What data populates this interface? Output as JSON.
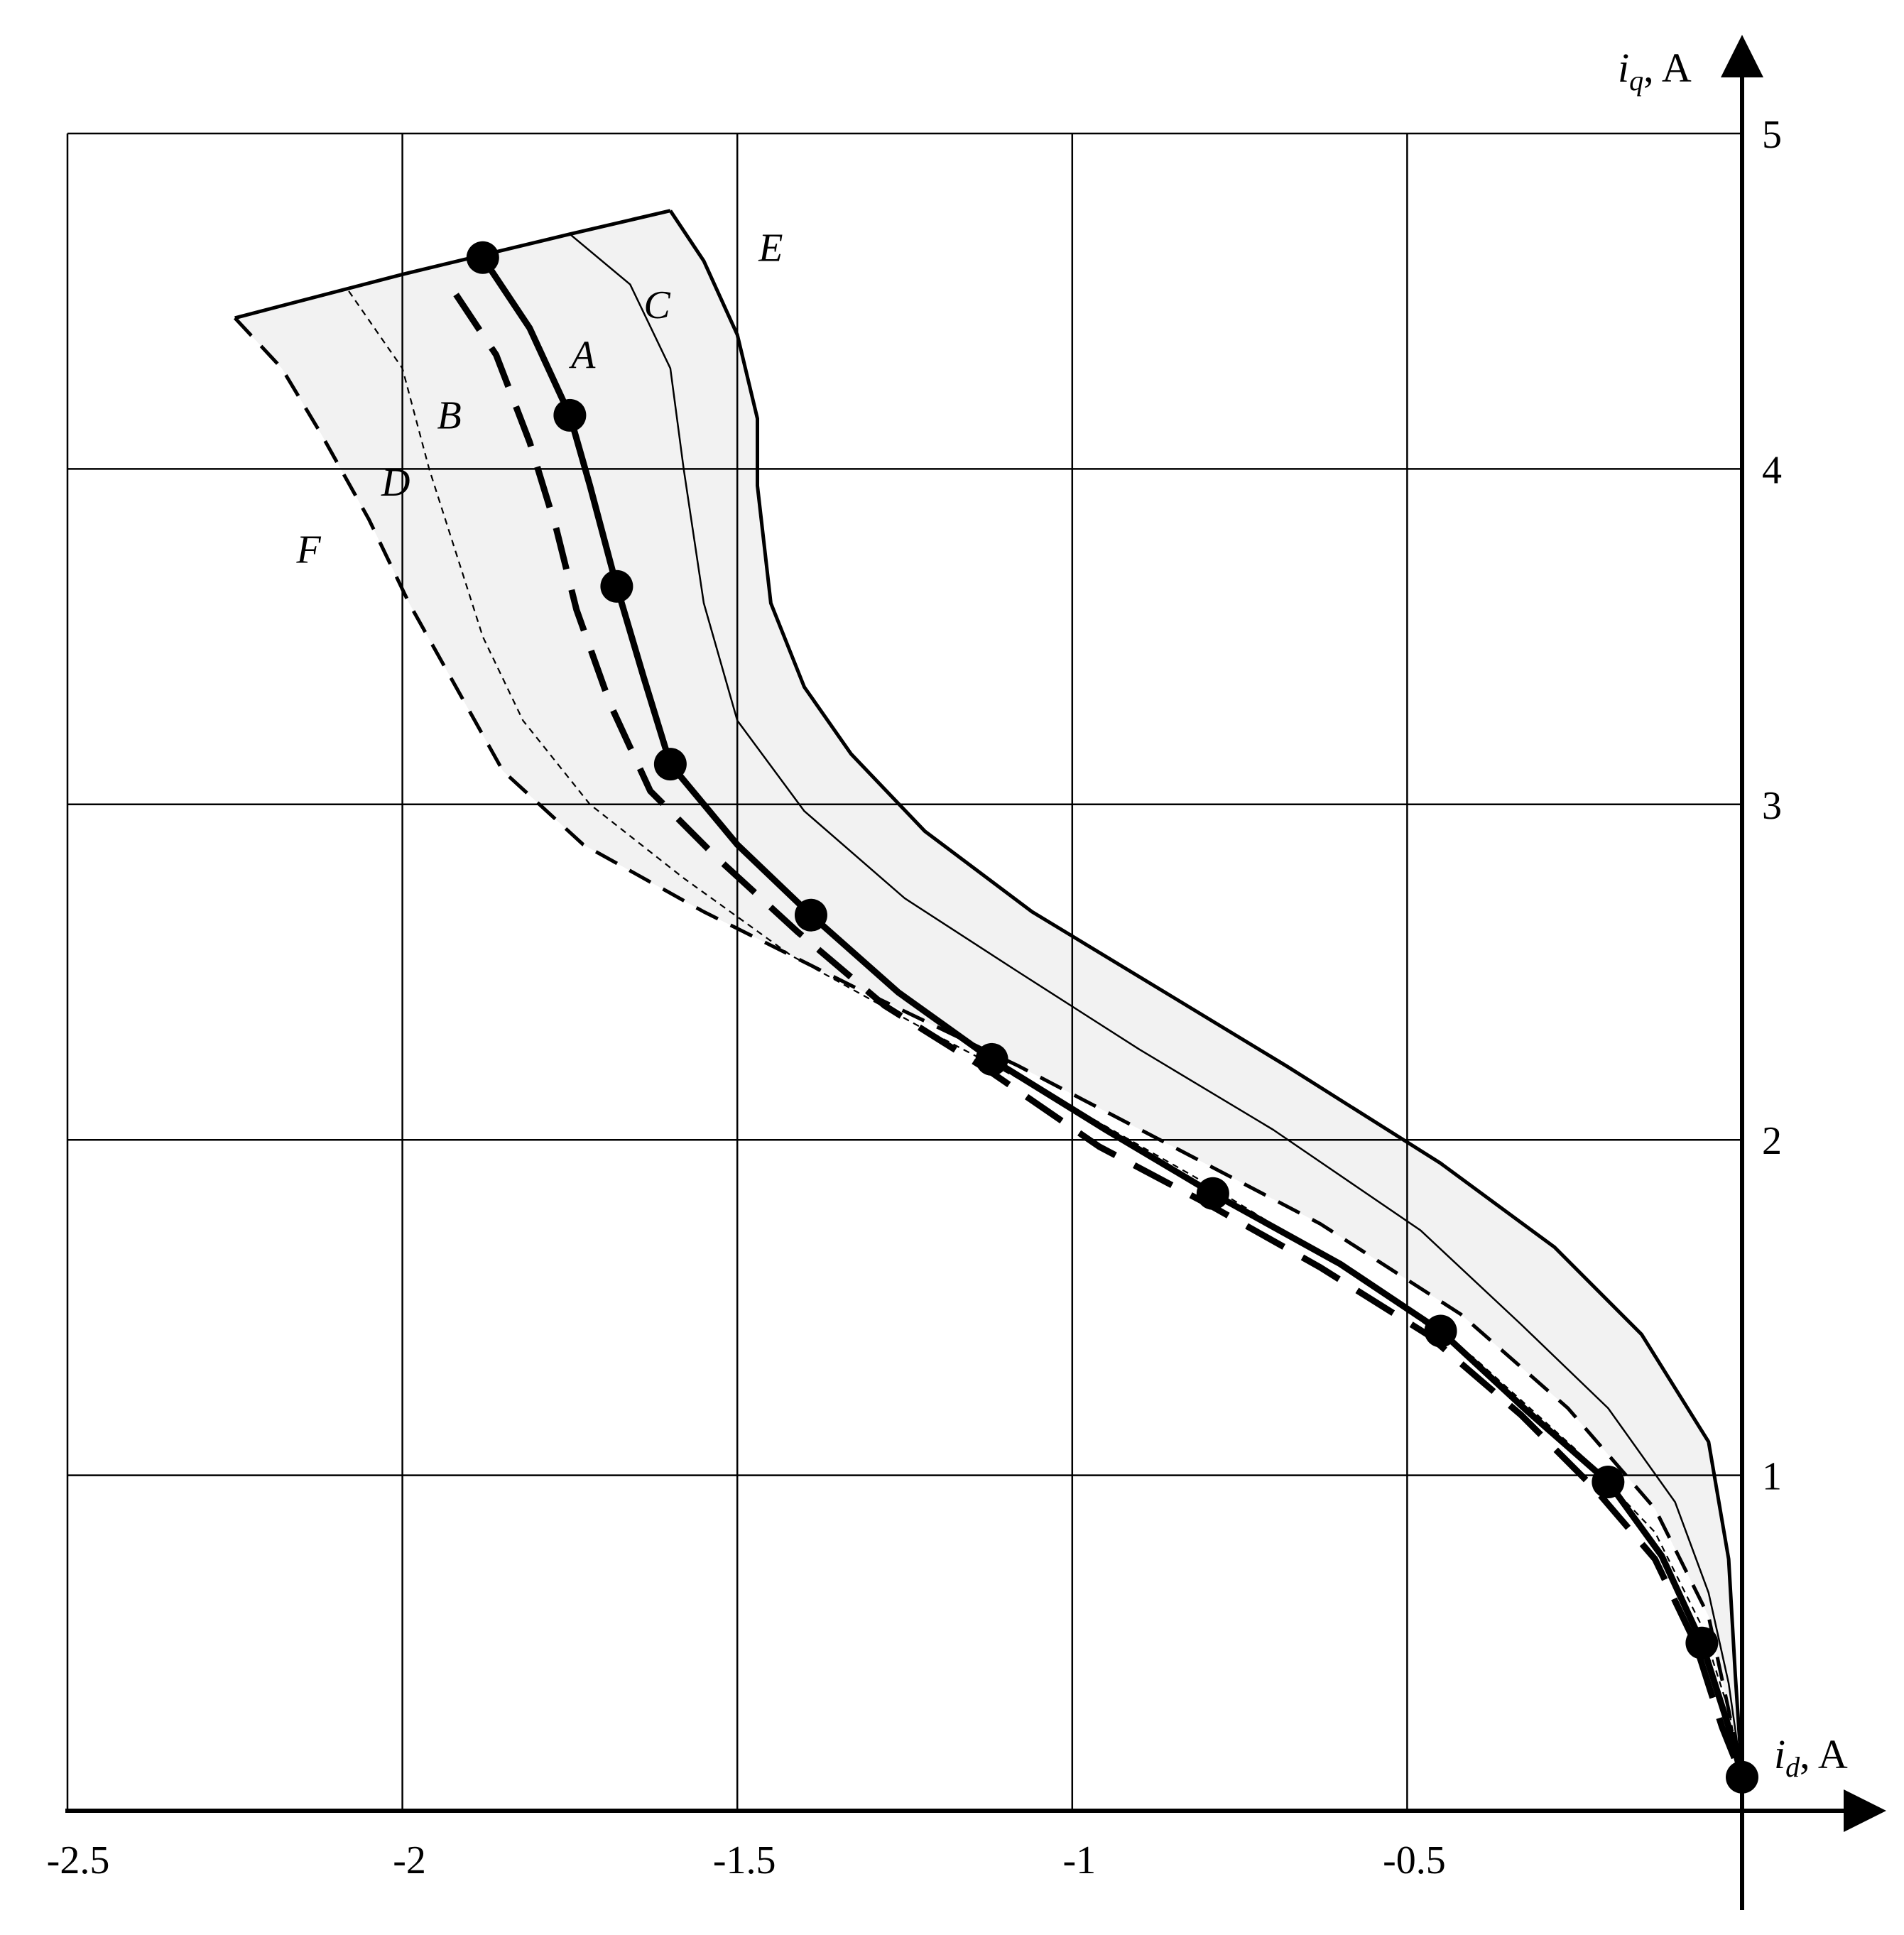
{
  "chart_data": {
    "type": "line",
    "title": "",
    "x_axis": {
      "label": "i",
      "subscript": "d",
      "unit": ", A",
      "range": [
        -2.5,
        0
      ],
      "ticks": [
        -2.5,
        -2,
        -1.5,
        -1,
        -0.5
      ],
      "tick_labels": [
        "-2.5",
        "-2",
        "-1.5",
        "-1",
        "-0.5"
      ]
    },
    "y_axis": {
      "label": "i",
      "subscript": "q",
      "unit": ", A",
      "range": [
        0,
        5
      ],
      "ticks": [
        1,
        2,
        3,
        4,
        5
      ],
      "tick_labels": [
        "1",
        "2",
        "3",
        "4",
        "5"
      ]
    },
    "grid": true,
    "shaded_region": {
      "between": [
        "E",
        "F"
      ],
      "color": "#f2f2f2"
    },
    "series": [
      {
        "name": "A",
        "style": "solid-thick",
        "markers": true,
        "points": [
          [
            -1.88,
            4.63
          ],
          [
            -1.81,
            4.42
          ],
          [
            -1.75,
            4.16
          ],
          [
            -1.72,
            3.95
          ],
          [
            -1.68,
            3.65
          ],
          [
            -1.64,
            3.38
          ],
          [
            -1.6,
            3.12
          ],
          [
            -1.5,
            2.88
          ],
          [
            -1.39,
            2.67
          ],
          [
            -1.26,
            2.44
          ],
          [
            -1.12,
            2.24
          ],
          [
            -0.95,
            2.03
          ],
          [
            -0.79,
            1.84
          ],
          [
            -0.6,
            1.63
          ],
          [
            -0.45,
            1.43
          ],
          [
            -0.32,
            1.19
          ],
          [
            -0.2,
            0.98
          ],
          [
            -0.12,
            0.76
          ],
          [
            -0.06,
            0.5
          ],
          [
            -0.02,
            0.25
          ],
          [
            0,
            0.1
          ]
        ],
        "marker_points": [
          [
            -1.88,
            4.63
          ],
          [
            -1.75,
            4.16
          ],
          [
            -1.68,
            3.65
          ],
          [
            -1.6,
            3.12
          ],
          [
            -1.39,
            2.67
          ],
          [
            -1.12,
            2.24
          ],
          [
            -0.79,
            1.84
          ],
          [
            -0.45,
            1.43
          ],
          [
            -0.2,
            0.98
          ],
          [
            -0.06,
            0.5
          ],
          [
            0,
            0.1
          ]
        ]
      },
      {
        "name": "B",
        "style": "long-dash-thick",
        "points": [
          [
            -1.92,
            4.52
          ],
          [
            -1.86,
            4.34
          ],
          [
            -1.81,
            4.08
          ],
          [
            -1.77,
            3.82
          ],
          [
            -1.74,
            3.58
          ],
          [
            -1.69,
            3.3
          ],
          [
            -1.63,
            3.04
          ],
          [
            -1.53,
            2.84
          ],
          [
            -1.41,
            2.62
          ],
          [
            -1.28,
            2.4
          ],
          [
            -1.12,
            2.2
          ],
          [
            -0.96,
            1.98
          ],
          [
            -0.79,
            1.8
          ],
          [
            -0.63,
            1.62
          ],
          [
            -0.47,
            1.42
          ],
          [
            -0.33,
            1.18
          ],
          [
            -0.22,
            0.96
          ],
          [
            -0.13,
            0.75
          ],
          [
            -0.07,
            0.5
          ],
          [
            -0.03,
            0.25
          ],
          [
            0,
            0.1
          ]
        ]
      },
      {
        "name": "C",
        "style": "solid-thin",
        "points": [
          [
            -1.75,
            4.7
          ],
          [
            -1.66,
            4.55
          ],
          [
            -1.6,
            4.3
          ],
          [
            -1.58,
            4.0
          ],
          [
            -1.55,
            3.6
          ],
          [
            -1.5,
            3.25
          ],
          [
            -1.4,
            2.98
          ],
          [
            -1.25,
            2.72
          ],
          [
            -1.08,
            2.5
          ],
          [
            -0.9,
            2.27
          ],
          [
            -0.7,
            2.03
          ],
          [
            -0.48,
            1.73
          ],
          [
            -0.33,
            1.45
          ],
          [
            -0.2,
            1.2
          ],
          [
            -0.1,
            0.92
          ],
          [
            -0.05,
            0.65
          ],
          [
            -0.02,
            0.38
          ],
          [
            0,
            0.1
          ]
        ]
      },
      {
        "name": "D",
        "style": "short-dash-thin",
        "points": [
          [
            -2.08,
            4.53
          ],
          [
            -2.0,
            4.3
          ],
          [
            -1.96,
            4.0
          ],
          [
            -1.92,
            3.75
          ],
          [
            -1.88,
            3.5
          ],
          [
            -1.82,
            3.25
          ],
          [
            -1.72,
            3.0
          ],
          [
            -1.58,
            2.78
          ],
          [
            -1.42,
            2.55
          ],
          [
            -1.23,
            2.34
          ],
          [
            -1.02,
            2.12
          ],
          [
            -0.8,
            1.87
          ],
          [
            -0.58,
            1.6
          ],
          [
            -0.4,
            1.35
          ],
          [
            -0.25,
            1.08
          ],
          [
            -0.13,
            0.83
          ],
          [
            -0.06,
            0.55
          ],
          [
            -0.02,
            0.3
          ],
          [
            0,
            0.1
          ]
        ]
      },
      {
        "name": "E",
        "style": "solid-medium",
        "points": [
          [
            -1.6,
            4.77
          ],
          [
            -1.55,
            4.62
          ],
          [
            -1.5,
            4.4
          ],
          [
            -1.47,
            4.15
          ],
          [
            -1.47,
            3.95
          ],
          [
            -1.45,
            3.6
          ],
          [
            -1.4,
            3.35
          ],
          [
            -1.33,
            3.15
          ],
          [
            -1.22,
            2.92
          ],
          [
            -1.06,
            2.68
          ],
          [
            -0.87,
            2.45
          ],
          [
            -0.68,
            2.22
          ],
          [
            -0.45,
            1.93
          ],
          [
            -0.28,
            1.68
          ],
          [
            -0.15,
            1.42
          ],
          [
            -0.05,
            1.1
          ],
          [
            -0.02,
            0.75
          ],
          [
            -0.01,
            0.4
          ],
          [
            0,
            0.1
          ]
        ]
      },
      {
        "name": "F",
        "style": "dash-medium",
        "points": [
          [
            -2.25,
            4.45
          ],
          [
            -2.18,
            4.3
          ],
          [
            -2.12,
            4.1
          ],
          [
            -2.05,
            3.85
          ],
          [
            -1.99,
            3.6
          ],
          [
            -1.92,
            3.35
          ],
          [
            -1.85,
            3.1
          ],
          [
            -1.73,
            2.88
          ],
          [
            -1.55,
            2.68
          ],
          [
            -1.32,
            2.45
          ],
          [
            -1.08,
            2.22
          ],
          [
            -0.85,
            1.98
          ],
          [
            -0.63,
            1.75
          ],
          [
            -0.42,
            1.48
          ],
          [
            -0.26,
            1.2
          ],
          [
            -0.13,
            0.9
          ],
          [
            -0.05,
            0.58
          ],
          [
            -0.02,
            0.3
          ],
          [
            0,
            0.1
          ]
        ]
      }
    ],
    "top_edge": [
      [
        -2.25,
        4.45
      ],
      [
        -2.0,
        4.58
      ],
      [
        -1.75,
        4.7
      ],
      [
        -1.6,
        4.77
      ]
    ],
    "curve_labels": [
      {
        "text": "A",
        "at": [
          -1.73,
          4.3
        ]
      },
      {
        "text": "B",
        "at": [
          -1.93,
          4.12
        ]
      },
      {
        "text": "C",
        "at": [
          -1.62,
          4.45
        ]
      },
      {
        "text": "D",
        "at": [
          -2.01,
          3.92
        ]
      },
      {
        "text": "E",
        "at": [
          -1.45,
          4.62
        ]
      },
      {
        "text": "F",
        "at": [
          -2.14,
          3.72
        ]
      }
    ]
  }
}
